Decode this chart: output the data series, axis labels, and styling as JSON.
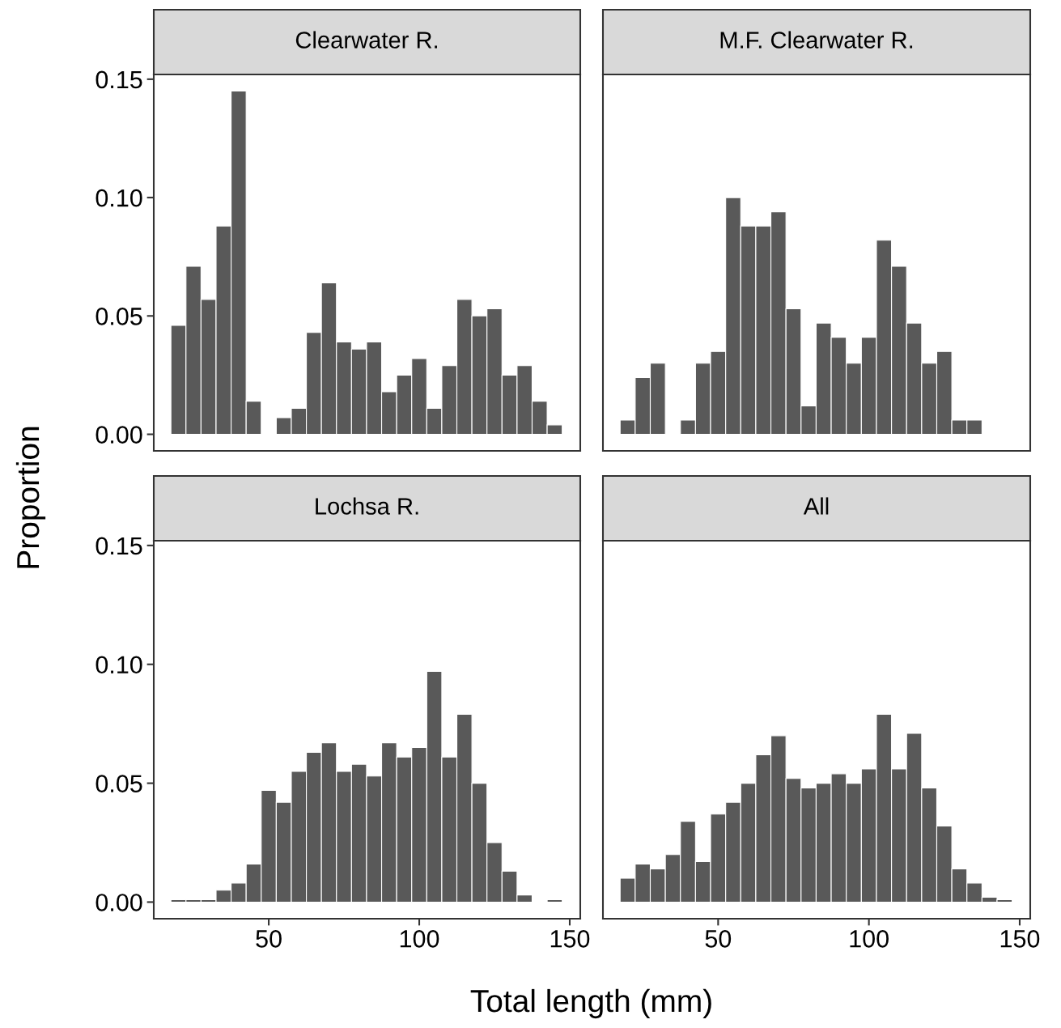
{
  "chart_data": [
    {
      "type": "histogram",
      "title": "Clearwater R.",
      "ylabel": "Proportion",
      "color": "#595959",
      "xlim": [
        11.8,
        153.5
      ],
      "ylim": [
        -0.007,
        0.152
      ],
      "yticks": [
        {
          "value": 0,
          "label": "0.00"
        },
        {
          "value": 0.05,
          "label": "0.05"
        },
        {
          "value": 0.1,
          "label": "0.10"
        },
        {
          "value": 0.15,
          "label": "0.15"
        }
      ],
      "grid": false,
      "bins": [
        17.5,
        22.5,
        27.5,
        32.5,
        37.5,
        42.5,
        47.5,
        52.5,
        57.5,
        62.5,
        67.5,
        72.5,
        77.5,
        82.5,
        87.5,
        92.5,
        97.5,
        102.5,
        107.5,
        112.5,
        117.5,
        122.5,
        127.5,
        132.5,
        137.5,
        142.5,
        147.5
      ],
      "values": [
        0.046,
        0.071,
        0.057,
        0.088,
        0.145,
        0.014,
        0,
        0.007,
        0.011,
        0.043,
        0.064,
        0.039,
        0.036,
        0.039,
        0.018,
        0.025,
        0.032,
        0.011,
        0.029,
        0.057,
        0.05,
        0.053,
        0.025,
        0.029,
        0.014,
        0.004
      ]
    },
    {
      "type": "histogram",
      "title": "M.F. Clearwater R.",
      "color": "#595959",
      "xlim": [
        11.8,
        153.5
      ],
      "ylim": [
        -0.007,
        0.152
      ],
      "grid": false,
      "bins": [
        17.5,
        22.5,
        27.5,
        32.5,
        37.5,
        42.5,
        47.5,
        52.5,
        57.5,
        62.5,
        67.5,
        72.5,
        77.5,
        82.5,
        87.5,
        92.5,
        97.5,
        102.5,
        107.5,
        112.5,
        117.5,
        122.5,
        127.5,
        132.5,
        137.5,
        142.5,
        147.5
      ],
      "values": [
        0.006,
        0.024,
        0.03,
        0,
        0.006,
        0.03,
        0.035,
        0.1,
        0.088,
        0.088,
        0.094,
        0.053,
        0.012,
        0.047,
        0.041,
        0.03,
        0.041,
        0.082,
        0.071,
        0.047,
        0.03,
        0.035,
        0.006,
        0.006,
        0,
        0
      ]
    },
    {
      "type": "histogram",
      "title": "Lochsa R.",
      "xlabel": "Total length (mm)",
      "color": "#595959",
      "xlim": [
        11.8,
        153.5
      ],
      "xticks": [
        50,
        100,
        150
      ],
      "ylim": [
        -0.007,
        0.152
      ],
      "yticks": [
        {
          "value": 0,
          "label": "0.00"
        },
        {
          "value": 0.05,
          "label": "0.05"
        },
        {
          "value": 0.1,
          "label": "0.10"
        },
        {
          "value": 0.15,
          "label": "0.15"
        }
      ],
      "grid": false,
      "bins": [
        17.5,
        22.5,
        27.5,
        32.5,
        37.5,
        42.5,
        47.5,
        52.5,
        57.5,
        62.5,
        67.5,
        72.5,
        77.5,
        82.5,
        87.5,
        92.5,
        97.5,
        102.5,
        107.5,
        112.5,
        117.5,
        122.5,
        127.5,
        132.5,
        137.5,
        142.5,
        147.5
      ],
      "values": [
        0.001,
        0.001,
        0.001,
        0.005,
        0.008,
        0.016,
        0.047,
        0.042,
        0.055,
        0.063,
        0.067,
        0.055,
        0.058,
        0.053,
        0.067,
        0.061,
        0.065,
        0.097,
        0.061,
        0.079,
        0.05,
        0.025,
        0.013,
        0.003,
        0,
        0.001
      ]
    },
    {
      "type": "histogram",
      "title": "All",
      "color": "#595959",
      "xlim": [
        11.8,
        153.5
      ],
      "xticks": [
        50,
        100,
        150
      ],
      "ylim": [
        -0.007,
        0.152
      ],
      "grid": false,
      "bins": [
        17.5,
        22.5,
        27.5,
        32.5,
        37.5,
        42.5,
        47.5,
        52.5,
        57.5,
        62.5,
        67.5,
        72.5,
        77.5,
        82.5,
        87.5,
        92.5,
        97.5,
        102.5,
        107.5,
        112.5,
        117.5,
        122.5,
        127.5,
        132.5,
        137.5,
        142.5,
        147.5
      ],
      "values": [
        0.01,
        0.016,
        0.014,
        0.02,
        0.034,
        0.017,
        0.037,
        0.042,
        0.05,
        0.062,
        0.07,
        0.052,
        0.048,
        0.05,
        0.054,
        0.05,
        0.056,
        0.079,
        0.056,
        0.071,
        0.048,
        0.032,
        0.014,
        0.008,
        0.002,
        0.001
      ]
    }
  ]
}
